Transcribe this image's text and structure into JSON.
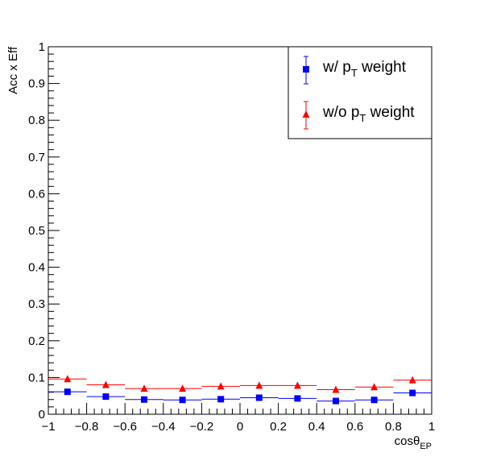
{
  "chart_data": {
    "type": "scatter",
    "title": "",
    "xlabel": "cosθ",
    "xlabel_subscript": "EP",
    "ylabel": "Acc x Eff",
    "xlim": [
      -1,
      1
    ],
    "ylim": [
      0,
      1
    ],
    "x_ticks": [
      -1,
      -0.8,
      -0.6,
      -0.4,
      -0.2,
      0,
      0.2,
      0.4,
      0.6,
      0.8,
      1
    ],
    "x_tick_labels": [
      "−1",
      "−0.8",
      "−0.6",
      "−0.4",
      "−0.2",
      "0",
      "0.2",
      "0.4",
      "0.6",
      "0.8",
      "1"
    ],
    "y_ticks": [
      0,
      0.1,
      0.2,
      0.3,
      0.4,
      0.5,
      0.6,
      0.7,
      0.8,
      0.9,
      1
    ],
    "y_tick_labels": [
      "0",
      "0.1",
      "0.2",
      "0.3",
      "0.4",
      "0.5",
      "0.6",
      "0.7",
      "0.8",
      "0.9",
      "1"
    ],
    "grid": false,
    "legend_position": "top-right",
    "bin_half_width": 0.1,
    "x": [
      -0.9,
      -0.7,
      -0.5,
      -0.3,
      -0.1,
      0.1,
      0.3,
      0.5,
      0.7,
      0.9
    ],
    "series": [
      {
        "name_main": "w/ p",
        "name_sub": "T",
        "name_tail": " weight",
        "color": "#0000ff",
        "marker": "square",
        "values": [
          0.061,
          0.048,
          0.04,
          0.039,
          0.041,
          0.045,
          0.043,
          0.036,
          0.039,
          0.058
        ]
      },
      {
        "name_main": "w/o p",
        "name_sub": "T",
        "name_tail": " weight",
        "color": "#ff0000",
        "marker": "triangle",
        "values": [
          0.096,
          0.08,
          0.07,
          0.07,
          0.076,
          0.078,
          0.078,
          0.067,
          0.074,
          0.093
        ]
      }
    ]
  }
}
